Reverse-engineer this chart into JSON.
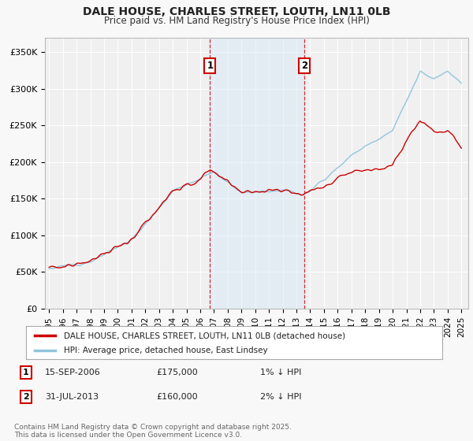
{
  "title": "DALE HOUSE, CHARLES STREET, LOUTH, LN11 0LB",
  "subtitle": "Price paid vs. HM Land Registry's House Price Index (HPI)",
  "ylim": [
    0,
    370000
  ],
  "yticks": [
    0,
    50000,
    100000,
    150000,
    200000,
    250000,
    300000,
    350000
  ],
  "ytick_labels": [
    "£0",
    "£50K",
    "£100K",
    "£150K",
    "£200K",
    "£250K",
    "£300K",
    "£350K"
  ],
  "xlim_year": [
    1994.7,
    2025.5
  ],
  "xtick_years": [
    1995,
    1996,
    1997,
    1998,
    1999,
    2000,
    2001,
    2002,
    2003,
    2004,
    2005,
    2006,
    2007,
    2008,
    2009,
    2010,
    2011,
    2012,
    2013,
    2014,
    2015,
    2016,
    2017,
    2018,
    2019,
    2020,
    2021,
    2022,
    2023,
    2024,
    2025
  ],
  "sale1_year": 2006.71,
  "sale1_price": 175000,
  "sale1_label": "1",
  "sale2_year": 2013.58,
  "sale2_price": 160000,
  "sale2_label": "2",
  "sale1_date": "15-SEP-2006",
  "sale2_date": "31-JUL-2013",
  "sale1_pct": "1% ↓ HPI",
  "sale2_pct": "2% ↓ HPI",
  "legend_line1": "DALE HOUSE, CHARLES STREET, LOUTH, LN11 0LB (detached house)",
  "legend_line2": "HPI: Average price, detached house, East Lindsey",
  "footer": "Contains HM Land Registry data © Crown copyright and database right 2025.\nThis data is licensed under the Open Government Licence v3.0.",
  "hpi_color": "#92c5de",
  "price_color": "#cc0000",
  "shade_color": "#d4e8f5",
  "background_color": "#f8f8f8",
  "plot_bg_color": "#f0f0f0",
  "grid_color": "#ffffff",
  "sale_line_color": "#cc0000",
  "sale_box_color": "#cc0000"
}
